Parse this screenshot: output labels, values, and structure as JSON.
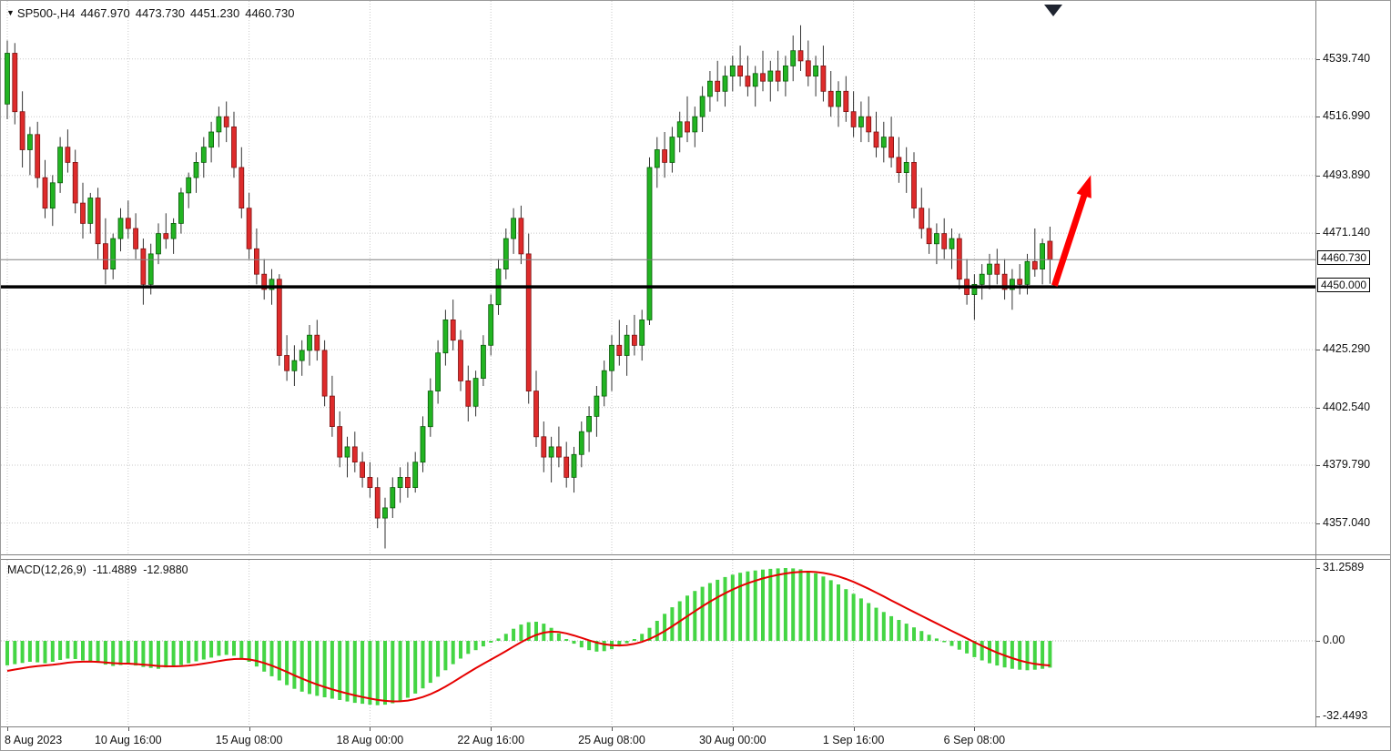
{
  "header": {
    "symbol_period": "SP500-,H4",
    "open": "4467.970",
    "high": "4473.730",
    "low": "4451.230",
    "close": "4460.730"
  },
  "indicator": {
    "label": "MACD(12,26,9)",
    "macd_value": "-11.4889",
    "signal_value": "-12.9880"
  },
  "axes": {
    "price_labels": [
      "4539.740",
      "4516.990",
      "4493.890",
      "4471.140",
      "4425.290",
      "4402.540",
      "4379.790",
      "4357.040"
    ],
    "current_price_label": "4460.730",
    "hline_label": "4450.000",
    "macd_labels": [
      "31.2589",
      "0.00",
      "-32.4493"
    ],
    "time_labels": [
      {
        "text": "8 Aug 2023",
        "bar": 0
      },
      {
        "text": "10 Aug 16:00",
        "bar": 16
      },
      {
        "text": "15 Aug 08:00",
        "bar": 32
      },
      {
        "text": "18 Aug 00:00",
        "bar": 48
      },
      {
        "text": "22 Aug 16:00",
        "bar": 64
      },
      {
        "text": "25 Aug 08:00",
        "bar": 80
      },
      {
        "text": "30 Aug 00:00",
        "bar": 96
      },
      {
        "text": "1 Sep 16:00",
        "bar": 112
      },
      {
        "text": "6 Sep 08:00",
        "bar": 128
      }
    ]
  },
  "chart_data": {
    "type": "candlestick",
    "title": "SP500-,H4",
    "symbol": "SP500",
    "timeframe": "H4",
    "price_axis_range": [
      4346,
      4554
    ],
    "macd_axis_range": [
      -35.8,
      34.8
    ],
    "levels": {
      "hline": 4450.0,
      "current_price": 4460.73
    },
    "arrow": {
      "from_bar": 138.6,
      "from_price": 4450.5,
      "to_bar": 143.4,
      "to_price": 4494
    },
    "candles": [
      [
        4522,
        4547,
        4516,
        4542
      ],
      [
        4542,
        4546,
        4514,
        4519
      ],
      [
        4519,
        4527,
        4497,
        4504
      ],
      [
        4504,
        4513,
        4494,
        4510
      ],
      [
        4510,
        4515,
        4489,
        4493
      ],
      [
        4493,
        4500,
        4477,
        4481
      ],
      [
        4481,
        4494,
        4474,
        4491
      ],
      [
        4491,
        4509,
        4487,
        4505
      ],
      [
        4505,
        4512,
        4495,
        4499
      ],
      [
        4499,
        4504,
        4479,
        4483
      ],
      [
        4483,
        4491,
        4469,
        4475
      ],
      [
        4475,
        4487,
        4471,
        4485
      ],
      [
        4485,
        4489,
        4461,
        4467
      ],
      [
        4467,
        4477,
        4451,
        4457
      ],
      [
        4457,
        4471,
        4453,
        4469
      ],
      [
        4469,
        4481,
        4464,
        4477
      ],
      [
        4477,
        4484,
        4469,
        4473
      ],
      [
        4473,
        4479,
        4461,
        4465
      ],
      [
        4465,
        4469,
        4443,
        4451
      ],
      [
        4451,
        4467,
        4447,
        4463
      ],
      [
        4463,
        4475,
        4459,
        4471
      ],
      [
        4471,
        4479,
        4465,
        4469
      ],
      [
        4469,
        4477,
        4463,
        4475
      ],
      [
        4475,
        4489,
        4471,
        4487
      ],
      [
        4487,
        4495,
        4481,
        4493
      ],
      [
        4493,
        4503,
        4487,
        4499
      ],
      [
        4499,
        4509,
        4493,
        4505
      ],
      [
        4505,
        4515,
        4499,
        4511
      ],
      [
        4511,
        4521,
        4505,
        4517
      ],
      [
        4517,
        4523,
        4507,
        4513
      ],
      [
        4513,
        4519,
        4493,
        4497
      ],
      [
        4497,
        4505,
        4477,
        4481
      ],
      [
        4481,
        4487,
        4461,
        4465
      ],
      [
        4465,
        4473,
        4451,
        4455
      ],
      [
        4455,
        4461,
        4445,
        4449
      ],
      [
        4449,
        4457,
        4443,
        4453
      ],
      [
        4453,
        4455,
        4419,
        4423
      ],
      [
        4423,
        4431,
        4413,
        4417
      ],
      [
        4417,
        4427,
        4411,
        4421
      ],
      [
        4421,
        4429,
        4415,
        4425
      ],
      [
        4425,
        4435,
        4419,
        4431
      ],
      [
        4431,
        4437,
        4421,
        4425
      ],
      [
        4425,
        4429,
        4403,
        4407
      ],
      [
        4407,
        4415,
        4391,
        4395
      ],
      [
        4395,
        4401,
        4379,
        4383
      ],
      [
        4383,
        4391,
        4375,
        4387
      ],
      [
        4387,
        4393,
        4377,
        4381
      ],
      [
        4381,
        4385,
        4371,
        4375
      ],
      [
        4375,
        4381,
        4367,
        4371
      ],
      [
        4371,
        4375,
        4355,
        4359
      ],
      [
        4359,
        4367,
        4347,
        4363
      ],
      [
        4363,
        4375,
        4359,
        4371
      ],
      [
        4371,
        4379,
        4365,
        4375
      ],
      [
        4375,
        4381,
        4367,
        4371
      ],
      [
        4371,
        4385,
        4369,
        4381
      ],
      [
        4381,
        4399,
        4377,
        4395
      ],
      [
        4395,
        4414,
        4391,
        4409
      ],
      [
        4409,
        4429,
        4404,
        4424
      ],
      [
        4424,
        4441,
        4419,
        4437
      ],
      [
        4437,
        4445,
        4425,
        4429
      ],
      [
        4429,
        4433,
        4409,
        4413
      ],
      [
        4413,
        4419,
        4397,
        4403
      ],
      [
        4403,
        4417,
        4399,
        4414
      ],
      [
        4414,
        4431,
        4411,
        4427
      ],
      [
        4427,
        4447,
        4423,
        4443
      ],
      [
        4443,
        4461,
        4439,
        4457
      ],
      [
        4457,
        4473,
        4453,
        4469
      ],
      [
        4469,
        4481,
        4463,
        4477
      ],
      [
        4477,
        4482,
        4459,
        4463
      ],
      [
        4463,
        4471,
        4404,
        4409
      ],
      [
        4409,
        4417,
        4387,
        4391
      ],
      [
        4391,
        4397,
        4377,
        4383
      ],
      [
        4383,
        4391,
        4373,
        4387
      ],
      [
        4387,
        4395,
        4379,
        4383
      ],
      [
        4383,
        4389,
        4371,
        4375
      ],
      [
        4375,
        4387,
        4369,
        4384
      ],
      [
        4384,
        4397,
        4379,
        4393
      ],
      [
        4393,
        4403,
        4385,
        4399
      ],
      [
        4399,
        4411,
        4391,
        4407
      ],
      [
        4407,
        4421,
        4403,
        4417
      ],
      [
        4417,
        4431,
        4409,
        4427
      ],
      [
        4427,
        4437,
        4419,
        4423
      ],
      [
        4423,
        4435,
        4415,
        4431
      ],
      [
        4431,
        4439,
        4423,
        4427
      ],
      [
        4427,
        4441,
        4421,
        4437
      ],
      [
        4437,
        4501,
        4435,
        4497
      ],
      [
        4497,
        4509,
        4489,
        4504
      ],
      [
        4504,
        4511,
        4493,
        4499
      ],
      [
        4499,
        4513,
        4495,
        4509
      ],
      [
        4509,
        4519,
        4503,
        4515
      ],
      [
        4515,
        4525,
        4507,
        4511
      ],
      [
        4511,
        4521,
        4505,
        4517
      ],
      [
        4517,
        4529,
        4511,
        4525
      ],
      [
        4525,
        4535,
        4519,
        4531
      ],
      [
        4531,
        4539,
        4523,
        4527
      ],
      [
        4527,
        4537,
        4521,
        4533
      ],
      [
        4533,
        4541,
        4527,
        4537
      ],
      [
        4537,
        4545,
        4529,
        4533
      ],
      [
        4533,
        4541,
        4525,
        4529
      ],
      [
        4529,
        4537,
        4521,
        4534
      ],
      [
        4534,
        4543,
        4527,
        4531
      ],
      [
        4531,
        4539,
        4523,
        4535
      ],
      [
        4535,
        4543,
        4527,
        4531
      ],
      [
        4531,
        4541,
        4525,
        4537
      ],
      [
        4537,
        4549,
        4531,
        4543
      ],
      [
        4543,
        4553,
        4535,
        4539
      ],
      [
        4539,
        4547,
        4529,
        4533
      ],
      [
        4533,
        4541,
        4525,
        4537
      ],
      [
        4537,
        4545,
        4523,
        4527
      ],
      [
        4527,
        4535,
        4517,
        4521
      ],
      [
        4521,
        4531,
        4513,
        4527
      ],
      [
        4527,
        4533,
        4515,
        4519
      ],
      [
        4519,
        4527,
        4509,
        4513
      ],
      [
        4513,
        4523,
        4507,
        4517
      ],
      [
        4517,
        4525,
        4507,
        4511
      ],
      [
        4511,
        4519,
        4501,
        4505
      ],
      [
        4505,
        4515,
        4499,
        4509
      ],
      [
        4509,
        4517,
        4497,
        4501
      ],
      [
        4501,
        4509,
        4491,
        4495
      ],
      [
        4495,
        4505,
        4487,
        4499
      ],
      [
        4499,
        4503,
        4477,
        4481
      ],
      [
        4481,
        4489,
        4469,
        4473
      ],
      [
        4473,
        4481,
        4463,
        4467
      ],
      [
        4467,
        4475,
        4459,
        4471
      ],
      [
        4471,
        4477,
        4461,
        4465
      ],
      [
        4465,
        4473,
        4457,
        4469
      ],
      [
        4469,
        4471,
        4449,
        4453
      ],
      [
        4453,
        4461,
        4443,
        4447
      ],
      [
        4447,
        4455,
        4437,
        4451
      ],
      [
        4451,
        4459,
        4445,
        4455
      ],
      [
        4455,
        4463,
        4449,
        4459
      ],
      [
        4459,
        4465,
        4451,
        4455
      ],
      [
        4455,
        4461,
        4445,
        4449
      ],
      [
        4449,
        4457,
        4441,
        4453
      ],
      [
        4453,
        4459,
        4447,
        4451
      ],
      [
        4451,
        4463,
        4447,
        4460
      ],
      [
        4460,
        4473,
        4454,
        4457
      ],
      [
        4457,
        4469,
        4451,
        4467
      ],
      [
        4467.97,
        4473.73,
        4451.23,
        4460.73
      ]
    ],
    "macd_hist": [
      -10.5,
      -10,
      -9.5,
      -9,
      -9.2,
      -9.6,
      -9,
      -8.2,
      -7.6,
      -7.8,
      -8.4,
      -8.8,
      -9.4,
      -10.2,
      -10.8,
      -10.4,
      -10,
      -10.6,
      -11.2,
      -11.6,
      -12,
      -11.4,
      -11,
      -10.4,
      -9.6,
      -8.8,
      -8,
      -7.2,
      -6.4,
      -6,
      -6.4,
      -7.4,
      -9,
      -11,
      -13.2,
      -15.2,
      -17,
      -19,
      -20.6,
      -21.8,
      -22.8,
      -23.6,
      -24.2,
      -24.8,
      -25.4,
      -26,
      -26.6,
      -27,
      -27.4,
      -27.6,
      -27.4,
      -26.8,
      -25.8,
      -24.4,
      -22.6,
      -20.4,
      -18,
      -15.4,
      -12.6,
      -10,
      -7.6,
      -5.6,
      -4,
      -2.4,
      -0.8,
      1,
      3,
      5.2,
      7,
      8,
      8.2,
      7.4,
      5.6,
      3.2,
      0.8,
      -1.2,
      -2.8,
      -4,
      -4.6,
      -4.4,
      -3.6,
      -2.4,
      -1,
      0.8,
      3,
      5.6,
      8.6,
      11.6,
      14.4,
      17,
      19.4,
      21.4,
      23.2,
      24.8,
      26.2,
      27.4,
      28.4,
      29.2,
      29.8,
      30.2,
      30.6,
      30.9,
      31.1,
      31.26,
      31.1,
      30.7,
      30,
      29,
      27.6,
      26,
      24.2,
      22.2,
      20.2,
      18.2,
      16.2,
      14.2,
      12.4,
      10.6,
      9,
      7.4,
      5.8,
      4.2,
      2.6,
      1,
      -0.6,
      -2.2,
      -3.8,
      -5.4,
      -7,
      -8.4,
      -9.6,
      -10.6,
      -11.4,
      -12,
      -12.4,
      -12.6,
      -12.4,
      -12,
      -11.5
    ],
    "signal_seed": -13.5
  },
  "colors": {
    "up": "#22b422",
    "up_border": "#0a5c0a",
    "down": "#de2b2b",
    "down_border": "#7c1212",
    "wick": "#333333",
    "hist": "#44d544",
    "signal": "#e60000",
    "arrow": "#fe0000",
    "grid": "#c9c9c9",
    "hline": "#000000",
    "current_line": "#808080"
  }
}
